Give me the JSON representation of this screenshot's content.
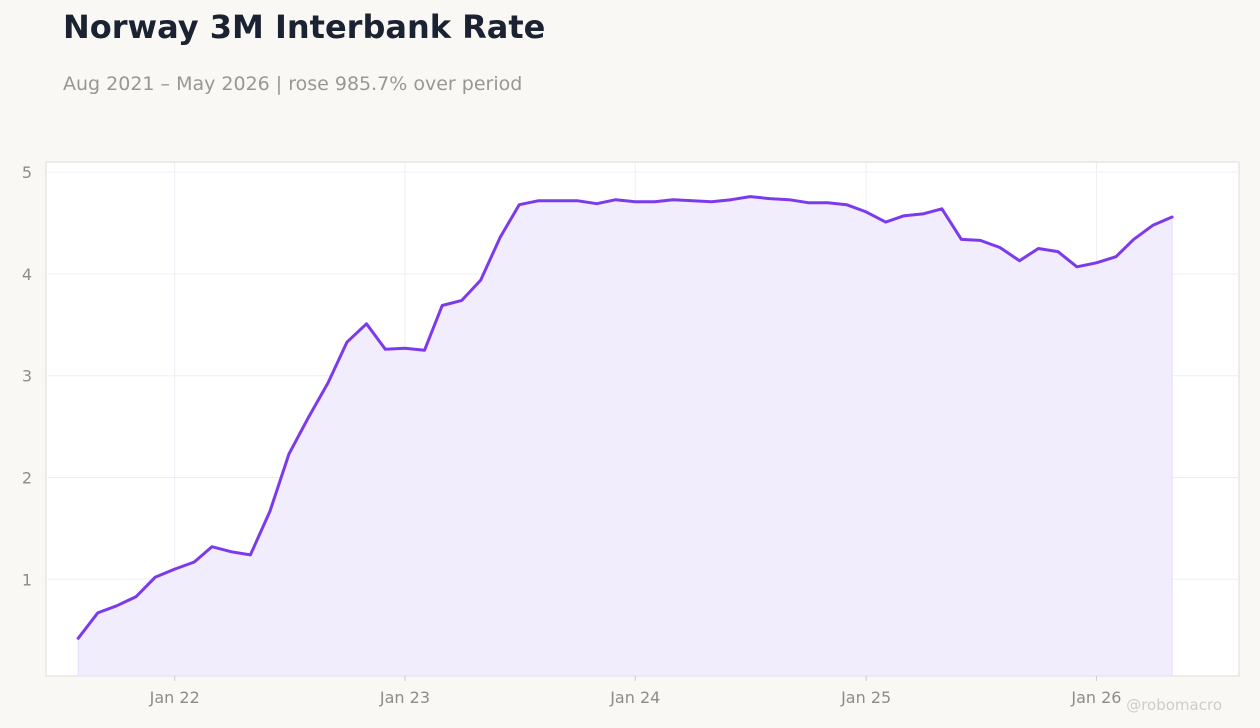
{
  "header": {
    "title": "Norway 3M Interbank Rate",
    "subtitle": "Aug 2021 – May 2026 | rose 985.7% over period"
  },
  "watermark": "@robomacro",
  "colors": {
    "line": "#7c3aed",
    "fill": "#f2edfd",
    "background": "#f9f8f5",
    "plot_background": "#ffffff",
    "grid": "#efedf3"
  },
  "chart_data": {
    "type": "area",
    "title": "Norway 3M Interbank Rate",
    "subtitle": "Aug 2021 – May 2026 | rose 985.7% over period",
    "xlabel": "",
    "ylabel": "",
    "xlim": [
      "2021-06-11",
      "2026-08-15"
    ],
    "ylim": [
      0.05,
      5.1
    ],
    "grid": true,
    "legend": "none",
    "x_ticks": [
      {
        "date": "2022-01-01",
        "label": "Jan 22"
      },
      {
        "date": "2023-01-01",
        "label": "Jan 23"
      },
      {
        "date": "2024-01-01",
        "label": "Jan 24"
      },
      {
        "date": "2025-01-01",
        "label": "Jan 25"
      },
      {
        "date": "2026-01-01",
        "label": "Jan 26"
      }
    ],
    "y_ticks": [
      1,
      2,
      3,
      4,
      5
    ],
    "x": [
      "2021-08-01",
      "2021-09-01",
      "2021-10-01",
      "2021-11-01",
      "2021-12-01",
      "2022-01-01",
      "2022-02-01",
      "2022-03-01",
      "2022-04-01",
      "2022-05-01",
      "2022-06-01",
      "2022-07-01",
      "2022-08-01",
      "2022-09-01",
      "2022-10-01",
      "2022-11-01",
      "2022-12-01",
      "2023-01-01",
      "2023-02-01",
      "2023-03-01",
      "2023-04-01",
      "2023-05-01",
      "2023-06-01",
      "2023-07-01",
      "2023-08-01",
      "2023-09-01",
      "2023-10-01",
      "2023-11-01",
      "2023-12-01",
      "2024-01-01",
      "2024-02-01",
      "2024-03-01",
      "2024-04-01",
      "2024-05-01",
      "2024-06-01",
      "2024-07-01",
      "2024-08-01",
      "2024-09-01",
      "2024-10-01",
      "2024-11-01",
      "2024-12-01",
      "2025-01-01",
      "2025-02-01",
      "2025-03-01",
      "2025-04-01",
      "2025-05-01",
      "2025-06-01",
      "2025-07-01",
      "2025-08-01",
      "2025-09-01",
      "2025-10-01",
      "2025-11-01",
      "2025-12-01",
      "2026-01-01",
      "2026-02-01",
      "2026-03-01",
      "2026-04-01",
      "2026-05-01"
    ],
    "series": [
      {
        "values": [
          0.42,
          0.67,
          0.74,
          0.83,
          1.02,
          1.1,
          1.17,
          1.32,
          1.27,
          1.24,
          1.67,
          2.23,
          2.59,
          2.93,
          3.33,
          3.51,
          3.26,
          3.27,
          3.25,
          3.69,
          3.74,
          3.94,
          4.36,
          4.68,
          4.72,
          4.72,
          4.72,
          4.69,
          4.73,
          4.71,
          4.71,
          4.73,
          4.72,
          4.71,
          4.73,
          4.76,
          4.74,
          4.73,
          4.7,
          4.7,
          4.68,
          4.61,
          4.51,
          4.57,
          4.59,
          4.64,
          4.34,
          4.33,
          4.26,
          4.13,
          4.25,
          4.22,
          4.07,
          4.11,
          4.17,
          4.34,
          4.48,
          4.56
        ]
      }
    ]
  }
}
